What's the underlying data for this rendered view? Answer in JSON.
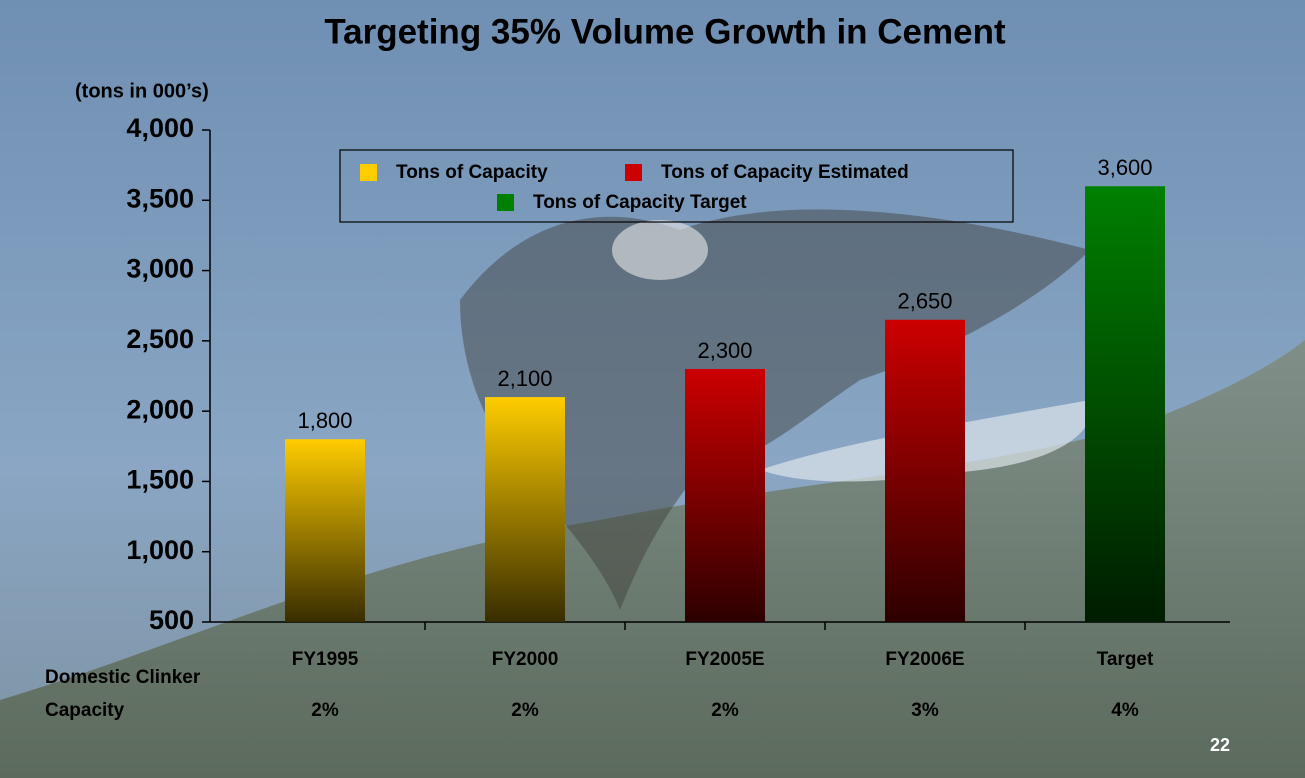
{
  "chart_data": {
    "type": "bar",
    "title": "Targeting 35% Volume Growth in Cement",
    "y_label": "(tons in 000’s)",
    "categories": [
      "FY1995",
      "FY2000",
      "FY2005E",
      "FY2006E",
      "Target"
    ],
    "series": [
      {
        "name": "Tons of Capacity",
        "color": "#ffcc00",
        "values": [
          1800,
          2100,
          null,
          null,
          null
        ],
        "value_labels": [
          "1,800",
          "2,100",
          null,
          null,
          null
        ]
      },
      {
        "name": "Tons of Capacity Estimated",
        "color": "#cc0000",
        "values": [
          null,
          null,
          2300,
          2650,
          null
        ],
        "value_labels": [
          null,
          null,
          "2,300",
          "2,650",
          null
        ]
      },
      {
        "name": "Tons of Capacity Target",
        "color": "#008000",
        "values": [
          null,
          null,
          null,
          null,
          3600
        ],
        "value_labels": [
          null,
          null,
          null,
          null,
          "3,600"
        ]
      }
    ],
    "ylim": [
      500,
      4000
    ],
    "yticks": [
      500,
      {
        "value": 1000,
        "label": "1,000"
      },
      {
        "value": 1500,
        "label": "1,500"
      },
      {
        "value": 2000,
        "label": "2,000"
      },
      {
        "value": 2500,
        "label": "2,500"
      },
      {
        "value": 3000,
        "label": "3,000"
      },
      {
        "value": 3500,
        "label": "3,500"
      },
      {
        "value": 4000,
        "label": "4,000"
      }
    ],
    "grid": false,
    "row": {
      "label_lines": [
        "Domestic Clinker",
        "Capacity"
      ],
      "values": [
        "2%",
        "2%",
        "2%",
        "3%",
        "4%"
      ]
    },
    "page_number": "22"
  }
}
